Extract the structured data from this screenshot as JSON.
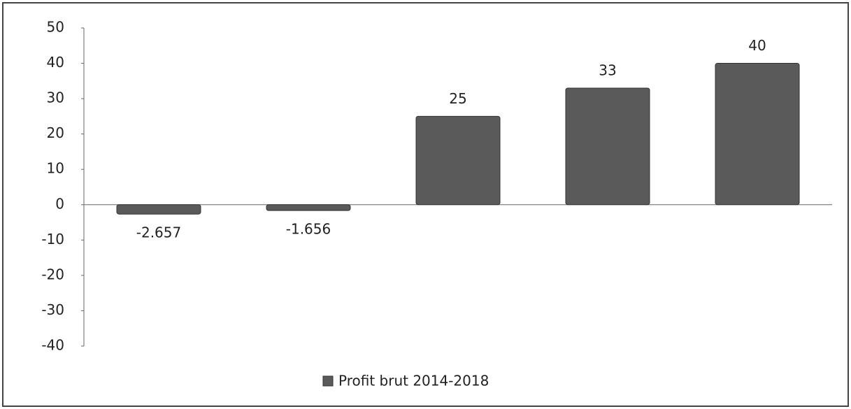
{
  "chart_data": {
    "type": "bar",
    "categories": [
      null,
      null,
      null,
      null,
      null
    ],
    "series": [
      {
        "name": "Profit brut 2014-2018",
        "color": "#5a5a5a",
        "values": [
          -2.657,
          -1.656,
          25,
          33,
          40
        ]
      }
    ],
    "ylim": [
      -40,
      50
    ],
    "yticks": [
      -40,
      -30,
      -20,
      -10,
      0,
      10,
      20,
      30,
      40,
      50
    ],
    "legend": "bottom"
  }
}
